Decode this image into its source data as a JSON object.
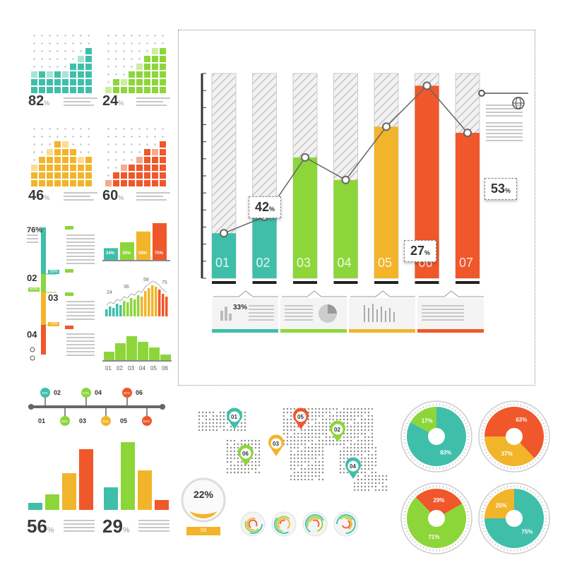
{
  "colors": {
    "teal": "#3fbfaa",
    "green": "#8dd63a",
    "yellow": "#f2b42a",
    "orange": "#f0572a",
    "grey": "#bdbdbd",
    "dark": "#444444"
  },
  "tiles": [
    {
      "pct": "82",
      "unit": "%",
      "color": "#3fbfaa",
      "light": "#a6e3d8",
      "heights": [
        3,
        3,
        3,
        3,
        3,
        4,
        5,
        6
      ]
    },
    {
      "pct": "24",
      "unit": "%",
      "color": "#8dd63a",
      "light": "#cbee9f",
      "heights": [
        1,
        2,
        2,
        3,
        4,
        5,
        6,
        6
      ]
    },
    {
      "pct": "46",
      "unit": "%",
      "color": "#f2b42a",
      "light": "#f9dc95",
      "heights": [
        3,
        4,
        5,
        6,
        6,
        5,
        4,
        4
      ]
    },
    {
      "pct": "60",
      "unit": "%",
      "color": "#f0572a",
      "light": "#f7a98f",
      "heights": [
        1,
        2,
        3,
        3,
        4,
        5,
        5,
        6
      ]
    }
  ],
  "vbars": {
    "labels": [
      "76%",
      "02",
      "03",
      "04"
    ],
    "tags": [
      "38%",
      "50%",
      "70%"
    ]
  },
  "mini_bar": {
    "values": [
      "24",
      "36",
      "58",
      "75"
    ],
    "unit": "%"
  },
  "mini_line": {
    "labels": [
      "24",
      "36",
      "58",
      "75"
    ]
  },
  "mini_hist": {
    "categories": [
      "01",
      "02",
      "03",
      "04",
      "05",
      "06"
    ]
  },
  "timeline": {
    "top_labels": [
      "02",
      "04",
      "06"
    ],
    "bottom_labels": [
      "01",
      "03",
      "05"
    ],
    "top_pcts": [
      "48%",
      "64%",
      "92%"
    ],
    "bottom_pcts": [
      "58%",
      "26%",
      "56%"
    ]
  },
  "bottom_bars": [
    {
      "pct": "56",
      "unit": "%"
    },
    {
      "pct": "29",
      "unit": "%"
    }
  ],
  "chart_data": {
    "type": "bar",
    "categories": [
      "01",
      "02",
      "03",
      "04",
      "05",
      "06",
      "07"
    ],
    "values": [
      22,
      30,
      59,
      48,
      74,
      94,
      71
    ],
    "ylim": [
      0,
      100
    ],
    "line_values": [
      22,
      30,
      59,
      48,
      74,
      94,
      71
    ],
    "callouts": [
      {
        "value": "42",
        "unit": "%"
      },
      {
        "value": "27",
        "unit": "%"
      },
      {
        "value": "53",
        "unit": "%"
      }
    ],
    "panel_pct": "33%"
  },
  "map_pins": [
    "01",
    "02",
    "03",
    "04",
    "05",
    "06"
  ],
  "gauge": {
    "value": "22%",
    "label": "03"
  },
  "donuts": [
    {
      "a": "83",
      "b": "17"
    },
    {
      "a": "63",
      "b": "37"
    },
    {
      "a": "71",
      "b": "29"
    },
    {
      "a": "75",
      "b": "25"
    }
  ],
  "donut_unit": "%"
}
